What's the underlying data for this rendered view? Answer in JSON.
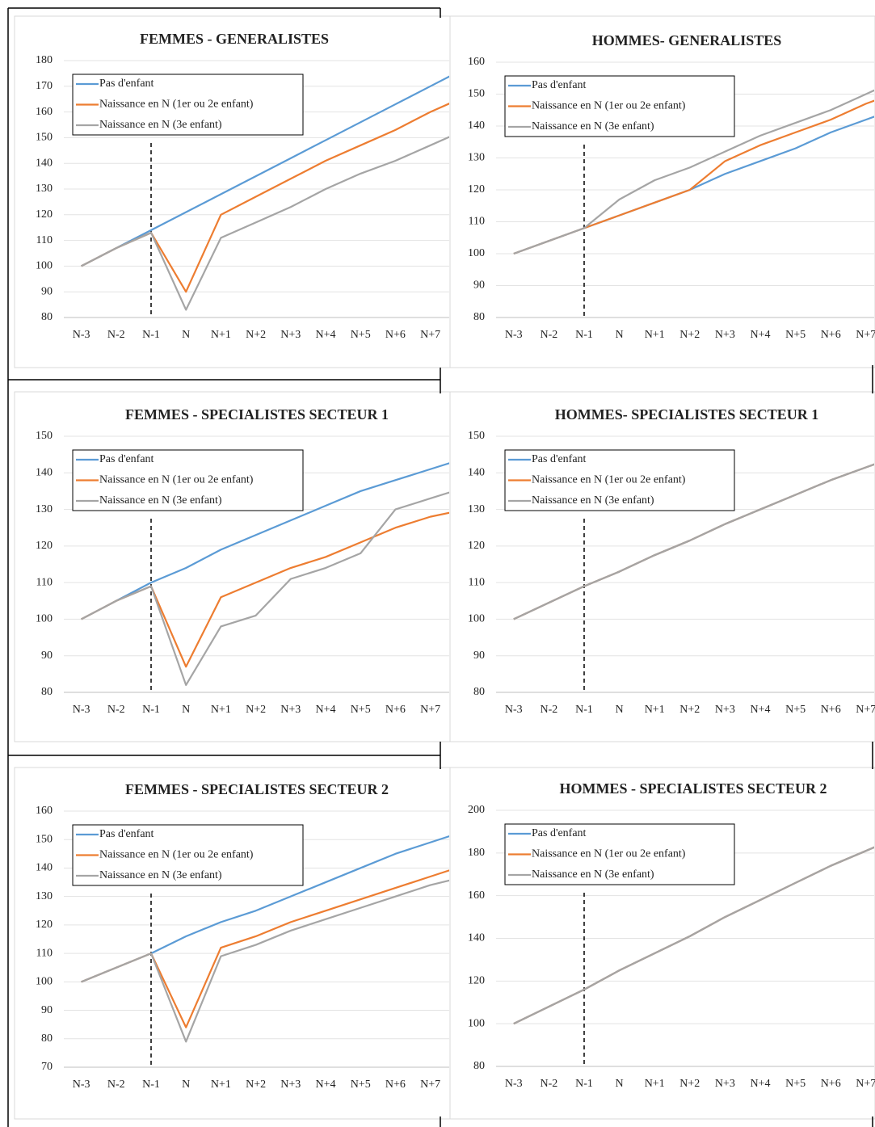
{
  "chart_data": [
    {
      "type": "line",
      "title": "FEMMES - GENERALISTES",
      "categories": [
        "N-3",
        "N-2",
        "N-1",
        "N",
        "N+1",
        "N+2",
        "N+3",
        "N+4",
        "N+5",
        "N+6",
        "N+7",
        null
      ],
      "series": [
        {
          "name": "Pas d'enfant",
          "color": "#5b9bd5",
          "values": [
            100,
            107,
            114,
            121,
            128,
            135,
            142,
            149,
            156,
            163,
            170,
            177
          ]
        },
        {
          "name": "Naissance en N (1er ou 2e enfant)",
          "color": "#ed7d31",
          "values": [
            100,
            107,
            113,
            90,
            120,
            127,
            134,
            141,
            147,
            153,
            160,
            166
          ]
        },
        {
          "name": "Naissance en N (3e enfant)",
          "color": "#a5a5a5",
          "values": [
            100,
            107,
            113,
            83,
            111,
            117,
            123,
            130,
            136,
            141,
            147,
            153
          ]
        }
      ],
      "ylim": [
        80,
        180
      ],
      "yticks": [
        80,
        90,
        100,
        110,
        120,
        130,
        140,
        150,
        160,
        170,
        180
      ],
      "grid": true,
      "legend": "upper left"
    },
    {
      "type": "line",
      "title": "HOMMES- GENERALISTES",
      "categories": [
        "N-3",
        "N-2",
        "N-1",
        "N",
        "N+1",
        "N+2",
        "N+3",
        "N+4",
        "N+5",
        "N+6",
        "N+7",
        null
      ],
      "series": [
        {
          "name": "Pas d'enfant",
          "color": "#5b9bd5",
          "values": [
            100,
            104,
            108,
            112,
            116,
            120,
            125,
            129,
            133,
            138,
            142,
            146
          ]
        },
        {
          "name": "Naissance en N (1er ou 2e enfant)",
          "color": "#ed7d31",
          "values": [
            100,
            104,
            108,
            112,
            116,
            120,
            129,
            134,
            138,
            142,
            147,
            151
          ]
        },
        {
          "name": "Naissance en N (3e enfant)",
          "color": "#a5a5a5",
          "values": [
            100,
            104,
            108,
            117,
            123,
            127,
            132,
            137,
            141,
            145,
            150,
            155
          ]
        }
      ],
      "ylim": [
        80,
        160
      ],
      "yticks": [
        80,
        90,
        100,
        110,
        120,
        130,
        140,
        150,
        160
      ],
      "grid": true,
      "legend": "upper left"
    },
    {
      "type": "line",
      "title": "FEMMES - SPECIALISTES SECTEUR 1",
      "categories": [
        "N-3",
        "N-2",
        "N-1",
        "N",
        "N+1",
        "N+2",
        "N+3",
        "N+4",
        "N+5",
        "N+6",
        "N+7",
        null
      ],
      "series": [
        {
          "name": "Pas d'enfant",
          "color": "#5b9bd5",
          "values": [
            100,
            105,
            110,
            114,
            119,
            123,
            127,
            131,
            135,
            138,
            141,
            144
          ]
        },
        {
          "name": "Naissance en N (1er ou 2e enfant)",
          "color": "#ed7d31",
          "values": [
            100,
            105,
            109,
            87,
            106,
            110,
            114,
            117,
            121,
            125,
            128,
            130
          ]
        },
        {
          "name": "Naissance en N (3e enfant)",
          "color": "#a5a5a5",
          "values": [
            100,
            105,
            109,
            82,
            98,
            101,
            111,
            114,
            118,
            130,
            133,
            136
          ]
        }
      ],
      "ylim": [
        80,
        150
      ],
      "yticks": [
        80,
        90,
        100,
        110,
        120,
        130,
        140,
        150
      ],
      "grid": true,
      "legend": "upper left"
    },
    {
      "type": "line",
      "title": "HOMMES- SPECIALISTES SECTEUR 1",
      "categories": [
        "N-3",
        "N-2",
        "N-1",
        "N",
        "N+1",
        "N+2",
        "N+3",
        "N+4",
        "N+5",
        "N+6",
        "N+7",
        null
      ],
      "series": [
        {
          "name": "Pas d'enfant",
          "color": "#5b9bd5",
          "values": [
            100,
            104.5,
            109,
            113,
            117.5,
            121.5,
            126,
            130,
            134,
            138,
            141.5,
            145
          ]
        },
        {
          "name": "Naissance en N (1er ou 2e enfant)",
          "color": "#ed7d31",
          "values": [
            100,
            104.5,
            109,
            113,
            117.5,
            121.5,
            126,
            130,
            134,
            138,
            141.5,
            145
          ]
        },
        {
          "name": "Naissance en N (3e enfant)",
          "color": "#a5a5a5",
          "values": [
            100,
            104.5,
            109,
            113,
            117.5,
            121.5,
            126,
            130,
            134,
            138,
            141.5,
            145
          ]
        }
      ],
      "ylim": [
        80,
        150
      ],
      "yticks": [
        80,
        90,
        100,
        110,
        120,
        130,
        140,
        150
      ],
      "grid": true,
      "legend": "upper left"
    },
    {
      "type": "line",
      "title": "FEMMES - SPECIALISTES SECTEUR 2",
      "categories": [
        "N-3",
        "N-2",
        "N-1",
        "N",
        "N+1",
        "N+2",
        "N+3",
        "N+4",
        "N+5",
        "N+6",
        "N+7",
        null
      ],
      "series": [
        {
          "name": "Pas d'enfant",
          "color": "#5b9bd5",
          "values": [
            100,
            105,
            110,
            116,
            121,
            125,
            130,
            135,
            140,
            145,
            149,
            153
          ]
        },
        {
          "name": "Naissance en N (1er ou 2e enfant)",
          "color": "#ed7d31",
          "values": [
            100,
            105,
            110,
            84,
            112,
            116,
            121,
            125,
            129,
            133,
            137,
            141
          ]
        },
        {
          "name": "Naissance en N (3e enfant)",
          "color": "#a5a5a5",
          "values": [
            100,
            105,
            110,
            79,
            109,
            113,
            118,
            122,
            126,
            130,
            134,
            137
          ]
        }
      ],
      "ylim": [
        70,
        160
      ],
      "yticks": [
        70,
        80,
        90,
        100,
        110,
        120,
        130,
        140,
        150,
        160
      ],
      "grid": true,
      "legend": "upper left"
    },
    {
      "type": "line",
      "title": "HOMMES - SPECIALISTES SECTEUR 2",
      "categories": [
        "N-3",
        "N-2",
        "N-1",
        "N",
        "N+1",
        "N+2",
        "N+3",
        "N+4",
        "N+5",
        "N+6",
        "N+7",
        null
      ],
      "series": [
        {
          "name": "Pas d'enfant",
          "color": "#5b9bd5",
          "values": [
            100,
            108,
            116,
            125,
            133,
            141,
            150,
            158,
            166,
            174,
            181,
            188
          ]
        },
        {
          "name": "Naissance en N (1er ou 2e enfant)",
          "color": "#ed7d31",
          "values": [
            100,
            108,
            116,
            125,
            133,
            141,
            150,
            158,
            166,
            174,
            181,
            188
          ]
        },
        {
          "name": "Naissance en N (3e enfant)",
          "color": "#a5a5a5",
          "values": [
            100,
            108,
            116,
            125,
            133,
            141,
            150,
            158,
            166,
            174,
            181,
            188
          ]
        }
      ],
      "ylim": [
        80,
        200
      ],
      "yticks": [
        80,
        100,
        120,
        140,
        160,
        180,
        200
      ],
      "grid": true,
      "legend": "upper left"
    }
  ]
}
